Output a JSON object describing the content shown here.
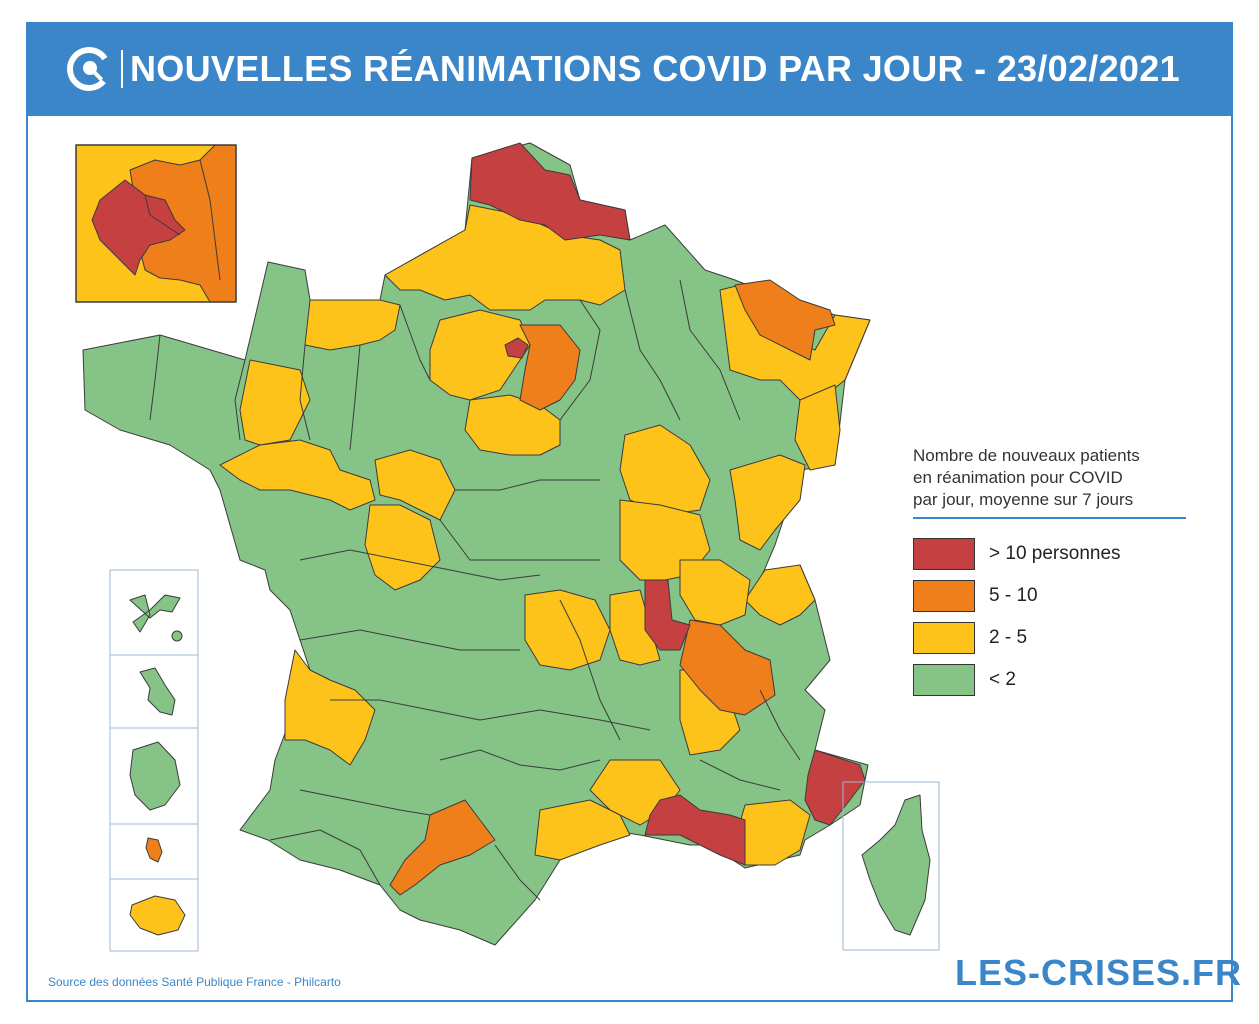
{
  "header": {
    "title": "NOUVELLES RÉANIMATIONS COVID PAR JOUR - 23/02/2021",
    "background": "#3b86c8",
    "logo_icon": "les-crises-c-logo-icon"
  },
  "colors": {
    "red": "#c54040",
    "orange": "#ef7f1a",
    "yellow": "#fec31a",
    "green": "#86c387",
    "border": "#3b3b3b",
    "accent": "#3b86c8"
  },
  "legend": {
    "title_lines": [
      "Nombre de nouveaux patients",
      "en réanimation pour COVID",
      "par jour, moyenne sur 7 jours"
    ],
    "items": [
      {
        "label": "> 10 personnes",
        "color": "#c54040"
      },
      {
        "label": "5 - 10",
        "color": "#ef7f1a"
      },
      {
        "label": "2 - 5",
        "color": "#fec31a"
      },
      {
        "label": "< 2",
        "color": "#86c387"
      }
    ]
  },
  "source": "Source des données Santé Publique France - Philcarto",
  "brand": "LES-CRISES.FR"
}
